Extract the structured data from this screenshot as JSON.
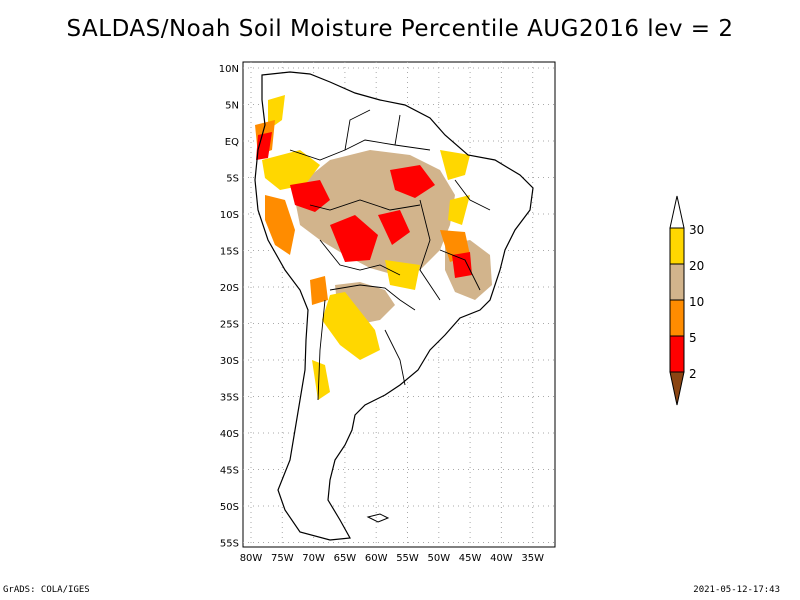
{
  "title": "SALDAS/Noah Soil Moisture Percentile AUG2016 lev = 2",
  "map": {
    "lat_ticks": [
      "10N",
      "5N",
      "EQ",
      "5S",
      "10S",
      "15S",
      "20S",
      "25S",
      "30S",
      "35S",
      "40S",
      "45S",
      "50S",
      "55S"
    ],
    "lon_ticks": [
      "80W",
      "75W",
      "70W",
      "65W",
      "60W",
      "55W",
      "50W",
      "45W",
      "40W",
      "35W"
    ],
    "extent": {
      "lon": [
        -81,
        -34
      ],
      "lat": [
        -56,
        12
      ]
    }
  },
  "legend": {
    "labels": [
      "30",
      "20",
      "10",
      "5",
      "2"
    ],
    "bins": [
      {
        "range": ">30",
        "color": "#ffffff"
      },
      {
        "range": "20-30",
        "color": "#ffd700"
      },
      {
        "range": "10-20",
        "color": "#d2b48c"
      },
      {
        "range": "5-10",
        "color": "#ff8c00"
      },
      {
        "range": "2-5",
        "color": "#ff0000"
      },
      {
        "range": "<2",
        "color": "#8b4513"
      }
    ]
  },
  "footer": {
    "left": "GrADS: COLA/IGES",
    "right": "2021-05-12-17:43"
  }
}
